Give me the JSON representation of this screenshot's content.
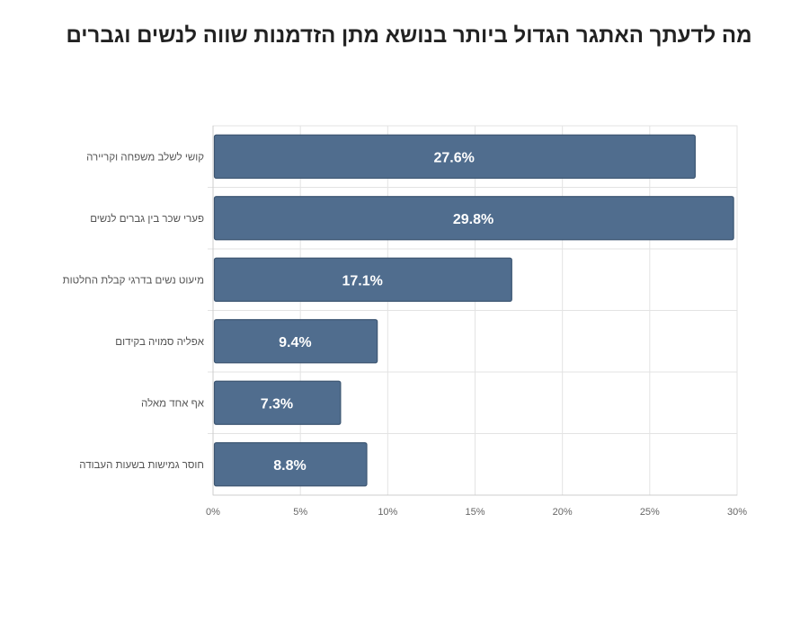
{
  "chart_data": {
    "type": "bar",
    "orientation": "horizontal",
    "title": "מה לדעתך האתגר הגדול ביותר בנושא מתן הזדמנות שווה לנשים וגברים",
    "categories": [
      "קושי לשלב משפחה וקריירה",
      "פערי שכר בין גברים לנשים",
      "מיעוט נשים בדרגי קבלת החלטות",
      "אפליה סמויה בקידום",
      "אף אחד מאלה",
      "חוסר גמישות בשעות העבודה"
    ],
    "values": [
      27.6,
      29.8,
      17.1,
      9.4,
      7.3,
      8.8
    ],
    "data_labels": [
      "27.6%",
      "29.8%",
      "17.1%",
      "9.4%",
      "7.3%",
      "8.8%"
    ],
    "xlim": [
      0,
      30
    ],
    "x_ticks": [
      0,
      5,
      10,
      15,
      20,
      25,
      30
    ],
    "x_tick_labels": [
      "0%",
      "5%",
      "10%",
      "15%",
      "20%",
      "25%",
      "30%"
    ],
    "xlabel": "",
    "ylabel": "",
    "grid": true,
    "legend": "none",
    "colors": {
      "bar": "#506d8e",
      "bar_edge": "#3d5672",
      "grid": "#e3e3e3",
      "axis": "#cccccc"
    }
  }
}
